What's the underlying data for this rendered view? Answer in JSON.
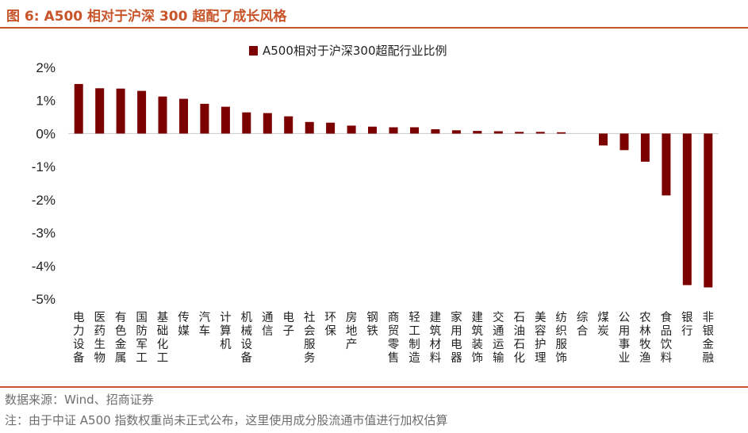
{
  "figure": {
    "title": "图 6:  A500 相对于沪深 300 超配了成长风格",
    "source": "数据来源：Wind、招商证券",
    "note": "注：由于中证 A500 指数权重尚未正式公布，这里使用成分股流通市值进行加权估算"
  },
  "colors": {
    "bar": "#7b0000",
    "accent": "#c8542a",
    "axis": "#d0d0d0"
  },
  "chart_data": {
    "type": "bar",
    "title": "",
    "xlabel": "",
    "ylabel": "",
    "ylim": [
      -5,
      2
    ],
    "yticks": [
      "2%",
      "1%",
      "0%",
      "-1%",
      "-2%",
      "-3%",
      "-4%",
      "-5%"
    ],
    "legend": "top",
    "categories": [
      "电力设备",
      "医药生物",
      "有色金属",
      "国防军工",
      "基础化工",
      "传媒",
      "汽车",
      "计算机",
      "机械设备",
      "通信",
      "电子",
      "社会服务",
      "环保",
      "房地产",
      "钢铁",
      "商贸零售",
      "轻工制造",
      "建筑材料",
      "家用电器",
      "建筑装饰",
      "交通运输",
      "石油石化",
      "美容护理",
      "纺织服饰",
      "综合",
      "煤炭",
      "公用事业",
      "农林牧渔",
      "食品饮料",
      "银行",
      "非银金融"
    ],
    "series": [
      {
        "name": "A500相对于沪深300超配行业比例",
        "values": [
          1.5,
          1.37,
          1.36,
          1.29,
          1.12,
          1.05,
          0.9,
          0.81,
          0.64,
          0.62,
          0.52,
          0.35,
          0.33,
          0.24,
          0.21,
          0.19,
          0.19,
          0.13,
          0.1,
          0.08,
          0.07,
          0.05,
          0.05,
          0.04,
          0.0,
          -0.36,
          -0.5,
          -0.85,
          -1.87,
          -4.58,
          -4.65
        ]
      }
    ]
  }
}
